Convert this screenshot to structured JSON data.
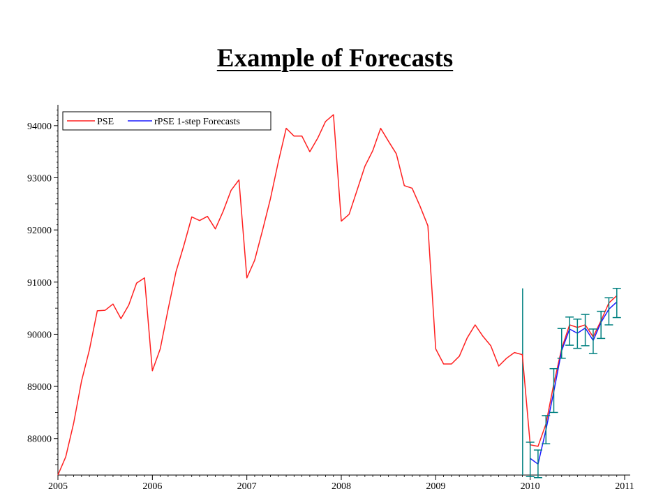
{
  "slide": {
    "title": "Example of Forecasts"
  },
  "chart_data": {
    "type": "line",
    "xlim": [
      2005.0,
      2011.0
    ],
    "ylim": [
      87300,
      94400
    ],
    "x_ticks": [
      2005,
      2006,
      2007,
      2008,
      2009,
      2010,
      2011
    ],
    "x_tick_labels": [
      "2005",
      "2006",
      "2007",
      "2008",
      "2009",
      "2010",
      "2011"
    ],
    "y_ticks": [
      88000,
      89000,
      90000,
      91000,
      92000,
      93000,
      94000
    ],
    "y_tick_labels": [
      "88000",
      "89000",
      "90000",
      "91000",
      "92000",
      "93000",
      "94000"
    ],
    "legend": {
      "placement": "top-left",
      "entries": [
        {
          "label": "PSE",
          "color": "#ff2020"
        },
        {
          "label": "rPSE 1-step Forecasts",
          "color": "#1a1aff"
        }
      ]
    },
    "forecast_start_marker": {
      "x": 2009.92,
      "y_top": 90880,
      "y_bottom": 87300,
      "color": "#008080"
    },
    "series": [
      {
        "name": "PSE",
        "color": "#ff2020",
        "x": [
          2005.0,
          2005.083,
          2005.167,
          2005.25,
          2005.333,
          2005.417,
          2005.5,
          2005.583,
          2005.667,
          2005.75,
          2005.833,
          2005.917,
          2006.0,
          2006.083,
          2006.167,
          2006.25,
          2006.333,
          2006.417,
          2006.5,
          2006.583,
          2006.667,
          2006.75,
          2006.833,
          2006.917,
          2007.0,
          2007.083,
          2007.167,
          2007.25,
          2007.333,
          2007.417,
          2007.5,
          2007.583,
          2007.667,
          2007.75,
          2007.833,
          2007.917,
          2008.0,
          2008.083,
          2008.167,
          2008.25,
          2008.333,
          2008.417,
          2008.5,
          2008.583,
          2008.667,
          2008.75,
          2008.833,
          2008.917,
          2009.0,
          2009.083,
          2009.167,
          2009.25,
          2009.333,
          2009.417,
          2009.5,
          2009.583,
          2009.667,
          2009.75,
          2009.833,
          2009.917,
          2010.0,
          2010.083,
          2010.167,
          2010.25,
          2010.333,
          2010.417,
          2010.5,
          2010.583,
          2010.667,
          2010.75,
          2010.833,
          2010.917
        ],
        "y": [
          87300,
          87650,
          88300,
          89100,
          89700,
          90450,
          90460,
          90580,
          90300,
          90560,
          90980,
          91080,
          89300,
          89720,
          90480,
          91200,
          91700,
          92250,
          92180,
          92260,
          92020,
          92360,
          92760,
          92960,
          91080,
          91420,
          92000,
          92600,
          93300,
          93950,
          93800,
          93800,
          93500,
          93760,
          94080,
          94210,
          92170,
          92300,
          92760,
          93220,
          93520,
          93950,
          93700,
          93460,
          92850,
          92800,
          92460,
          92080,
          89720,
          89430,
          89430,
          89580,
          89930,
          90180,
          89960,
          89780,
          89390,
          89540,
          89650,
          89610,
          87880,
          87850,
          88280,
          89050,
          89720,
          90180,
          90130,
          90180,
          89950,
          90260,
          90600,
          90740
        ]
      },
      {
        "name": "rPSE 1-step Forecasts",
        "color": "#1a1aff",
        "x": [
          2010.0,
          2010.083,
          2010.167,
          2010.25,
          2010.333,
          2010.417,
          2010.5,
          2010.583,
          2010.667,
          2010.75,
          2010.833,
          2010.917
        ],
        "y": [
          87620,
          87510,
          88170,
          88900,
          89680,
          90100,
          90020,
          90120,
          89880,
          90230,
          90480,
          90620
        ],
        "error_bar": {
          "color": "#008080",
          "low": [
            87270,
            87250,
            87900,
            88500,
            89540,
            89790,
            89730,
            89780,
            89630,
            89920,
            90180,
            90320
          ],
          "high": [
            87930,
            87780,
            88440,
            89340,
            90110,
            90330,
            90290,
            90380,
            90100,
            90440,
            90700,
            90880
          ]
        }
      }
    ]
  }
}
